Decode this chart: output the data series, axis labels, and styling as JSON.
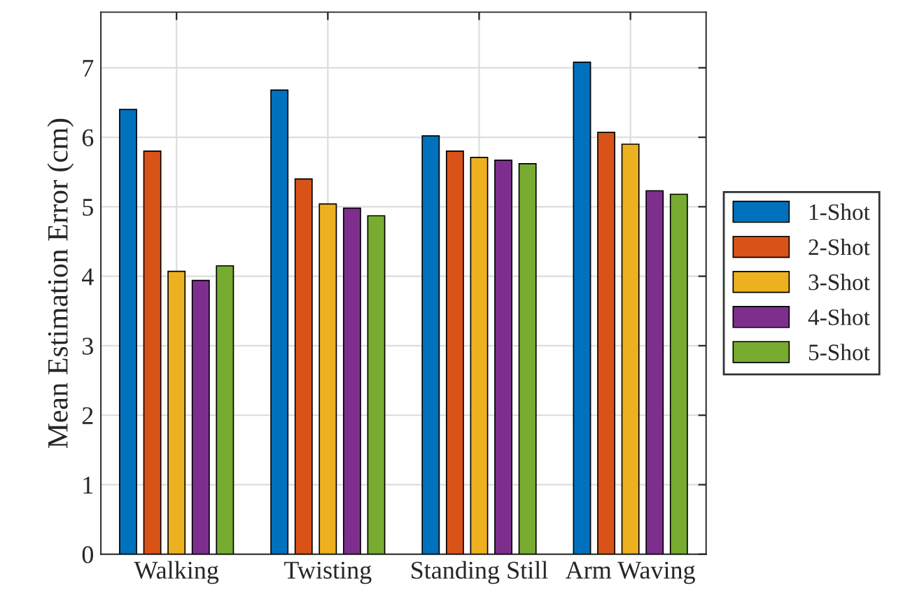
{
  "chart_data": {
    "type": "bar",
    "ylabel": "Mean Estimation Error (cm)",
    "categories": [
      "Walking",
      "Twisting",
      "Standing Still",
      "Arm Waving"
    ],
    "series": [
      {
        "name": "1-Shot",
        "color": "#0072bd",
        "values": [
          6.4,
          6.68,
          6.02,
          7.08
        ]
      },
      {
        "name": "2-Shot",
        "color": "#d95319",
        "values": [
          5.8,
          5.4,
          5.8,
          6.07
        ]
      },
      {
        "name": "3-Shot",
        "color": "#edb120",
        "values": [
          4.07,
          5.04,
          5.71,
          5.9
        ]
      },
      {
        "name": "4-Shot",
        "color": "#7e2f8e",
        "values": [
          3.94,
          4.98,
          5.67,
          5.23
        ]
      },
      {
        "name": "5-Shot",
        "color": "#77ac30",
        "values": [
          4.15,
          4.87,
          5.62,
          5.18
        ]
      }
    ],
    "ylim": [
      0,
      7.8
    ],
    "yticks": [
      0,
      1,
      2,
      3,
      4,
      5,
      6,
      7
    ],
    "grid": true,
    "legend": "right"
  }
}
